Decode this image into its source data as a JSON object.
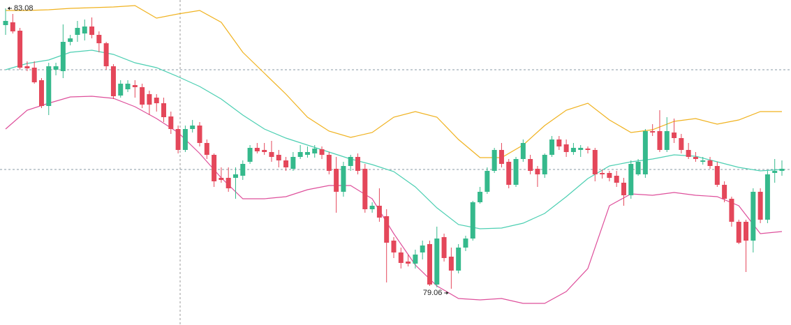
{
  "chart_data": {
    "type": "candlestick",
    "ylim": [
      78.54,
      83.2
    ],
    "up_color": "#35b98c",
    "down_color": "#e4475a",
    "open": [
      82.84,
      82.88,
      82.76,
      82.25,
      82.23,
      82.05,
      81.68,
      82.2,
      82.18,
      82.6,
      82.7,
      82.72,
      82.82,
      82.7,
      82.58,
      82.25,
      81.83,
      81.92,
      81.98,
      81.95,
      81.85,
      81.8,
      81.72,
      81.53,
      81.35,
      81.05,
      81.35,
      81.4,
      81.15,
      80.98,
      80.65,
      80.65,
      80.65,
      80.68,
      80.88,
      81.08,
      81.05,
      81.02,
      80.98,
      80.9,
      80.78,
      80.95,
      80.98,
      81.0,
      81.06,
      80.98,
      80.78,
      80.45,
      80.82,
      80.95,
      80.78,
      80.2,
      80.25,
      80.1,
      79.75,
      79.58,
      79.45,
      79.42,
      79.58,
      79.7,
      79.12,
      79.8,
      79.52,
      79.32,
      79.65,
      79.78,
      80.3,
      80.45,
      80.75,
      81.05,
      80.88,
      80.55,
      80.92,
      80.92,
      80.78,
      80.7,
      80.98,
      81.2,
      81.13,
      81.02,
      81.05,
      81.07,
      81.05,
      80.72,
      80.72,
      80.68,
      80.58,
      80.4,
      80.7,
      80.7,
      81.32,
      81.32,
      81.05,
      81.3,
      81.22,
      81.05,
      80.95,
      80.88,
      80.9,
      80.82,
      80.55,
      80.35,
      80.02,
      80.02,
      79.75,
      80.45,
      80.05,
      80.72,
      80.75
    ],
    "high": [
      83.08,
      83.0,
      82.8,
      82.32,
      82.32,
      82.08,
      82.3,
      82.3,
      82.85,
      82.7,
      82.9,
      82.92,
      82.95,
      82.75,
      82.6,
      82.28,
      82.05,
      82.05,
      82.05,
      82.0,
      81.9,
      81.85,
      81.8,
      81.6,
      81.4,
      81.4,
      81.48,
      81.45,
      81.2,
      81.0,
      80.8,
      80.8,
      80.8,
      80.9,
      81.12,
      81.15,
      81.15,
      81.18,
      81.05,
      80.95,
      81.02,
      81.12,
      81.1,
      81.12,
      81.1,
      81.02,
      80.95,
      80.88,
      80.98,
      81.0,
      80.85,
      80.3,
      80.5,
      80.2,
      79.8,
      79.65,
      79.55,
      79.62,
      79.75,
      79.75,
      79.95,
      79.85,
      79.65,
      79.7,
      79.82,
      80.32,
      80.52,
      80.8,
      81.08,
      81.15,
      80.92,
      80.95,
      81.2,
      80.98,
      80.82,
      81.0,
      81.25,
      81.25,
      81.2,
      81.15,
      81.12,
      81.1,
      81.08,
      80.77,
      80.75,
      80.75,
      80.65,
      80.9,
      80.92,
      81.35,
      81.42,
      81.62,
      81.52,
      81.5,
      81.28,
      81.15,
      81.02,
      80.95,
      80.95,
      80.88,
      80.6,
      80.38,
      80.05,
      80.05,
      80.5,
      80.5,
      80.75,
      80.92,
      80.9
    ],
    "low": [
      82.7,
      82.72,
      82.2,
      82.18,
      82.0,
      81.65,
      81.55,
      82.12,
      82.08,
      82.55,
      82.6,
      82.62,
      82.65,
      82.45,
      82.2,
      81.78,
      81.8,
      81.88,
      81.8,
      81.65,
      81.55,
      81.6,
      81.45,
      81.28,
      81.0,
      81.02,
      81.3,
      81.1,
      80.92,
      80.52,
      80.58,
      80.45,
      80.35,
      80.62,
      80.85,
      81.0,
      80.98,
      80.88,
      80.8,
      80.75,
      80.75,
      80.92,
      80.94,
      80.94,
      80.92,
      80.7,
      80.15,
      80.38,
      80.75,
      80.7,
      80.15,
      80.15,
      80.02,
      79.15,
      79.5,
      79.35,
      79.38,
      79.35,
      79.48,
      79.1,
      79.08,
      79.45,
      79.06,
      79.28,
      79.6,
      79.75,
      80.28,
      80.42,
      80.72,
      80.8,
      80.5,
      80.52,
      80.88,
      80.7,
      80.52,
      80.65,
      80.95,
      81.05,
      80.95,
      80.98,
      80.95,
      81.0,
      80.6,
      80.64,
      80.6,
      80.52,
      80.25,
      80.35,
      80.68,
      80.65,
      81.25,
      81.02,
      81.02,
      81.15,
      81.0,
      80.92,
      80.88,
      80.84,
      80.78,
      80.52,
      80.3,
      79.95,
      79.7,
      79.3,
      79.58,
      80.0,
      80.0,
      80.58,
      80.68
    ],
    "close": [
      82.9,
      82.75,
      82.23,
      82.22,
      82.02,
      81.68,
      82.25,
      82.25,
      82.6,
      82.65,
      82.8,
      82.82,
      82.7,
      82.58,
      82.25,
      81.82,
      82.0,
      82.0,
      81.95,
      81.7,
      81.7,
      81.72,
      81.52,
      81.35,
      81.05,
      81.35,
      81.4,
      81.15,
      80.98,
      80.6,
      80.62,
      80.5,
      80.7,
      80.85,
      81.08,
      81.03,
      81.02,
      80.95,
      80.9,
      80.8,
      80.95,
      81.02,
      81.02,
      81.07,
      80.98,
      80.75,
      80.45,
      80.82,
      80.95,
      80.75,
      80.2,
      80.25,
      80.08,
      79.72,
      79.58,
      79.43,
      79.42,
      79.55,
      79.68,
      79.12,
      79.78,
      79.5,
      79.32,
      79.65,
      79.78,
      80.3,
      80.45,
      80.75,
      81.05,
      80.85,
      80.55,
      80.92,
      81.15,
      80.75,
      80.7,
      80.98,
      81.2,
      81.1,
      81.02,
      81.08,
      81.08,
      81.05,
      80.7,
      80.7,
      80.65,
      80.58,
      80.4,
      80.85,
      80.88,
      81.32,
      81.3,
      81.05,
      81.32,
      81.22,
      81.05,
      80.95,
      80.92,
      80.9,
      80.82,
      80.55,
      80.35,
      80.02,
      79.72,
      79.75,
      80.45,
      80.05,
      80.7,
      80.75,
      80.78
    ],
    "bands": [
      {
        "color": "#f0b21f",
        "x": [
          0,
          3,
          6,
          9,
          12,
          15,
          18,
          21,
          24,
          27,
          30,
          33,
          36,
          39,
          42,
          45,
          48,
          51,
          54,
          57,
          60,
          63,
          66,
          69,
          72,
          75,
          78,
          81,
          84,
          87,
          90,
          93,
          96,
          99,
          102,
          105,
          108
        ],
        "values": [
          83.05,
          83.05,
          83.06,
          83.08,
          83.09,
          83.1,
          83.12,
          82.94,
          83.0,
          83.05,
          82.88,
          82.45,
          82.15,
          81.85,
          81.52,
          81.32,
          81.23,
          81.3,
          81.52,
          81.6,
          81.52,
          81.2,
          80.94,
          80.94,
          81.12,
          81.4,
          81.62,
          81.72,
          81.48,
          81.3,
          81.34,
          81.46,
          81.5,
          81.42,
          81.48,
          81.6,
          81.6
        ]
      },
      {
        "color": "#4ccfb2",
        "x": [
          0,
          3,
          6,
          9,
          12,
          15,
          18,
          21,
          24,
          27,
          30,
          33,
          36,
          39,
          42,
          45,
          48,
          51,
          54,
          57,
          60,
          63,
          66,
          69,
          72,
          75,
          78,
          81,
          84,
          87,
          90,
          93,
          96,
          99,
          102,
          105,
          108
        ],
        "values": [
          82.2,
          82.29,
          82.34,
          82.45,
          82.48,
          82.42,
          82.3,
          82.23,
          82.1,
          81.96,
          81.78,
          81.55,
          81.35,
          81.22,
          81.12,
          81.02,
          80.92,
          80.84,
          80.74,
          80.52,
          80.22,
          79.98,
          79.92,
          79.93,
          80.0,
          80.14,
          80.38,
          80.64,
          80.82,
          80.88,
          80.92,
          80.98,
          80.96,
          80.88,
          80.8,
          80.75,
          80.77
        ]
      },
      {
        "color": "#de4f9b",
        "x": [
          0,
          3,
          6,
          9,
          12,
          15,
          18,
          21,
          24,
          27,
          30,
          33,
          36,
          39,
          42,
          45,
          48,
          51,
          54,
          57,
          60,
          63,
          66,
          69,
          72,
          75,
          78,
          81,
          84,
          87,
          90,
          93,
          96,
          99,
          102,
          105,
          108
        ],
        "values": [
          81.35,
          81.62,
          81.72,
          81.81,
          81.82,
          81.79,
          81.67,
          81.5,
          81.3,
          81.0,
          80.65,
          80.35,
          80.35,
          80.38,
          80.48,
          80.54,
          80.54,
          80.35,
          79.85,
          79.4,
          79.1,
          78.92,
          78.9,
          78.92,
          78.85,
          78.85,
          79.02,
          79.35,
          80.25,
          80.42,
          80.4,
          80.44,
          80.4,
          80.38,
          80.25,
          79.85,
          79.88
        ]
      }
    ],
    "hlines": [
      82.2,
      80.77
    ]
  }
}
